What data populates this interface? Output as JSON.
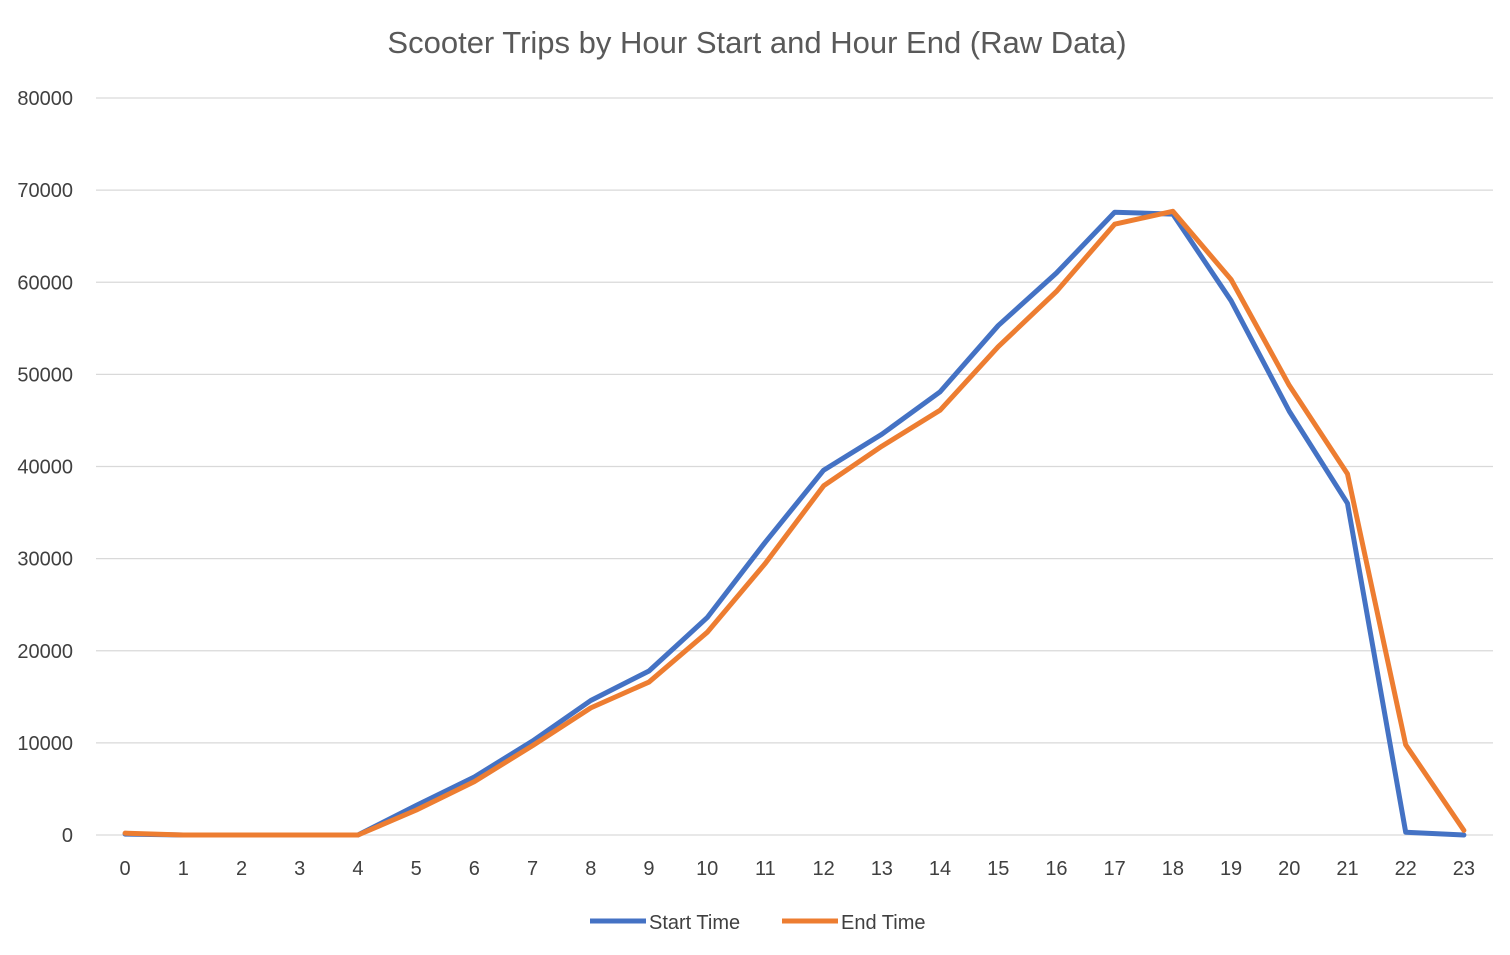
{
  "chart_data": {
    "type": "line",
    "title": "Scooter Trips by Hour Start and Hour End (Raw Data)",
    "xlabel": "",
    "ylabel": "",
    "categories": [
      "0",
      "1",
      "2",
      "3",
      "4",
      "5",
      "6",
      "7",
      "8",
      "9",
      "10",
      "11",
      "12",
      "13",
      "14",
      "15",
      "16",
      "17",
      "18",
      "19",
      "20",
      "21",
      "22",
      "23"
    ],
    "ylim": [
      0,
      80000
    ],
    "yticks": [
      "0",
      "10000",
      "20000",
      "30000",
      "40000",
      "50000",
      "60000",
      "70000",
      "80000"
    ],
    "grid": true,
    "legend_position": "bottom",
    "series": [
      {
        "name": "Start Time",
        "color": "#4472c4",
        "values": [
          100,
          0,
          0,
          0,
          0,
          3200,
          6300,
          10200,
          14600,
          17800,
          23600,
          31800,
          39600,
          43500,
          48100,
          55300,
          61000,
          67600,
          67400,
          58000,
          46000,
          36000,
          300,
          0
        ]
      },
      {
        "name": "End Time",
        "color": "#ed7d31",
        "values": [
          200,
          0,
          0,
          0,
          0,
          2700,
          5800,
          9700,
          13800,
          16600,
          22000,
          29500,
          37900,
          42200,
          46100,
          53000,
          59000,
          66300,
          67700,
          60300,
          48800,
          39200,
          9800,
          500
        ]
      }
    ]
  }
}
